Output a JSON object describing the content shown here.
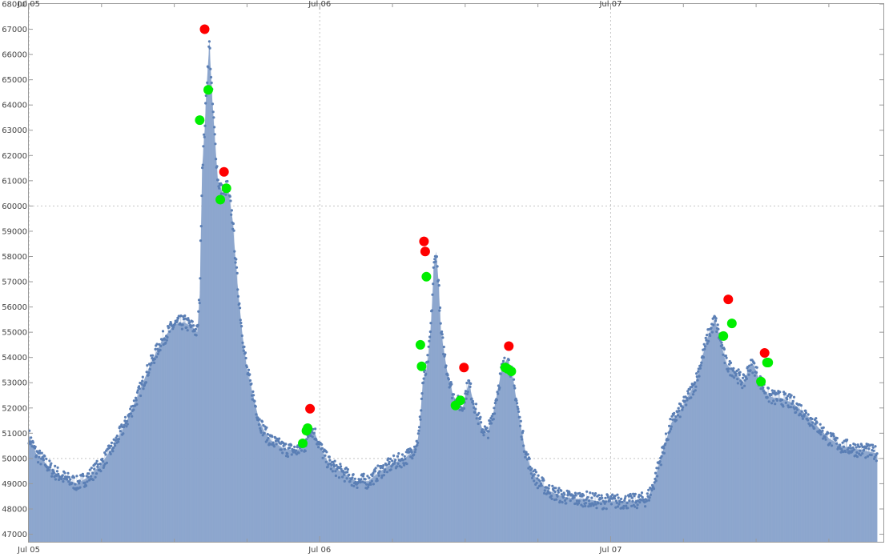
{
  "chart_data": {
    "type": "area",
    "title": "",
    "xlabel": "",
    "ylabel": "",
    "x_unit": "hours since Jul 05 00:00",
    "xlim": [
      0,
      70.5
    ],
    "ylim": [
      46700,
      68000
    ],
    "y_ticks": [
      47000,
      48000,
      49000,
      50000,
      51000,
      52000,
      53000,
      54000,
      55000,
      56000,
      57000,
      58000,
      59000,
      60000,
      61000,
      62000,
      63000,
      64000,
      65000,
      66000,
      67000,
      68000
    ],
    "y_tick_labels": [
      "47000",
      "48000",
      "49000",
      "50000",
      "51000",
      "52000",
      "53000",
      "54000",
      "55000",
      "56000",
      "57000",
      "58000",
      "59000",
      "60000",
      "61000",
      "62000",
      "63000",
      "64000",
      "65000",
      "66000",
      "67000",
      "68000"
    ],
    "x_ticks": [
      0,
      24,
      48
    ],
    "x_tick_labels": [
      "Jul 05",
      "Jul 06",
      "Jul 07"
    ],
    "x_minor_ticks": [
      6,
      12,
      18,
      30,
      36,
      42,
      54,
      60,
      66
    ],
    "x_grid": [
      24,
      48
    ],
    "y_grid": [
      60000
    ],
    "series": [
      {
        "style": "filled-points",
        "color": "#5b7fb5",
        "fill_color": "#8aa4cc",
        "x": [
          0,
          0.6,
          1.2,
          2,
          3,
          4,
          5,
          6,
          7,
          8,
          9,
          10,
          11,
          12,
          12.8,
          13.5,
          13.9,
          14.1,
          14.3,
          14.5,
          14.7,
          14.9,
          15.1,
          15.3,
          15.6,
          16,
          16.4,
          16.8,
          17.2,
          17.6,
          18,
          18.5,
          19,
          19.5,
          20,
          21,
          22,
          22.8,
          23.2,
          23.6,
          24,
          24.5,
          25,
          26,
          27,
          28,
          29,
          30,
          31,
          31.5,
          32,
          32.2,
          32.5,
          32.8,
          33,
          33.2,
          33.4,
          33.6,
          33.8,
          34,
          34.5,
          35,
          35.4,
          35.8,
          36,
          36.3,
          36.6,
          37,
          37.4,
          37.8,
          38.2,
          38.6,
          39,
          39.5,
          40,
          40.5,
          41,
          41.5,
          42,
          43,
          44,
          45,
          46,
          47,
          48,
          49,
          50,
          51,
          51.5,
          52,
          52.5,
          53,
          54,
          55,
          56,
          56.6,
          57.1,
          57.5,
          57.8,
          58.2,
          58.6,
          59,
          59.4,
          59.8,
          60.2,
          60.6,
          61,
          61.5,
          62,
          63,
          64,
          65,
          66,
          67,
          68,
          69,
          70
        ],
        "y": [
          50900,
          50200,
          49900,
          49500,
          49200,
          49000,
          49300,
          49800,
          50500,
          51400,
          52500,
          53700,
          54700,
          55300,
          55400,
          55200,
          55000,
          56500,
          61500,
          63000,
          65000,
          66500,
          64500,
          63000,
          61000,
          60500,
          60800,
          59500,
          57000,
          55000,
          53500,
          52500,
          51500,
          51000,
          50700,
          50400,
          50300,
          50500,
          51200,
          51000,
          50500,
          50000,
          49700,
          49400,
          49100,
          49100,
          49500,
          49800,
          50000,
          50200,
          50600,
          51000,
          53000,
          53500,
          54200,
          55500,
          57500,
          58200,
          57000,
          55000,
          53500,
          52500,
          52200,
          52000,
          52500,
          53000,
          52400,
          51700,
          51200,
          51000,
          51500,
          52500,
          53500,
          54000,
          53000,
          51500,
          50200,
          49500,
          49100,
          48700,
          48500,
          48400,
          48400,
          48300,
          48300,
          48300,
          48300,
          48400,
          48900,
          49800,
          50600,
          51400,
          52100,
          53000,
          54800,
          55500,
          54600,
          53800,
          53600,
          53500,
          53200,
          53000,
          53600,
          53700,
          53200,
          52800,
          52500,
          52400,
          52400,
          52200,
          51800,
          51300,
          50800,
          50500,
          50400,
          50300,
          50200
        ]
      }
    ],
    "markers": [
      {
        "name": "red-peaks",
        "color": "#ff0000",
        "x": [
          14.5,
          16.1,
          23.2,
          32.6,
          32.7,
          35.9,
          39.6,
          57.7,
          60.7
        ],
        "y": [
          67000,
          61350,
          51970,
          58600,
          58200,
          53600,
          54450,
          56300,
          54180
        ]
      },
      {
        "name": "green-points",
        "color": "#00ee00",
        "x": [
          14.1,
          14.8,
          15.8,
          16.3,
          22.6,
          22.9,
          23.0,
          32.3,
          32.4,
          32.8,
          35.2,
          35.6,
          39.3,
          39.5,
          39.8,
          57.3,
          58.0,
          60.4,
          60.9,
          61.0
        ],
        "y": [
          63400,
          64600,
          60250,
          60700,
          50600,
          51100,
          51200,
          54500,
          53650,
          57200,
          52100,
          52300,
          53600,
          53550,
          53450,
          54850,
          55350,
          53050,
          53800,
          53800
        ]
      }
    ]
  }
}
